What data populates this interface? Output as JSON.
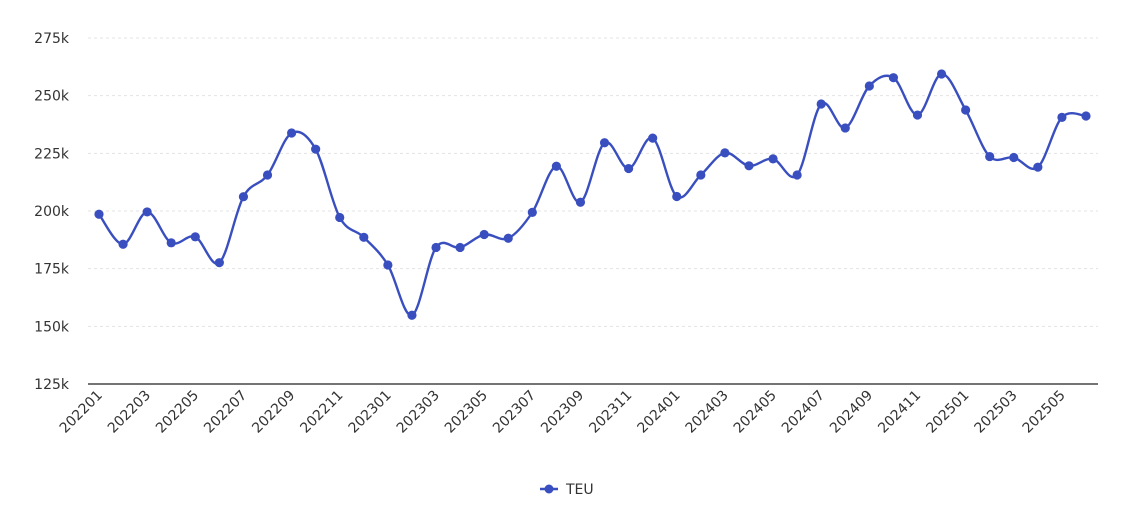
{
  "chart_data": {
    "type": "line",
    "title": "",
    "xlabel": "",
    "ylabel": "",
    "ylim": [
      125000,
      275000
    ],
    "y_ticks": [
      {
        "value": 125000,
        "label": "125k"
      },
      {
        "value": 150000,
        "label": "150k"
      },
      {
        "value": 175000,
        "label": "175k"
      },
      {
        "value": 200000,
        "label": "200k"
      },
      {
        "value": 225000,
        "label": "225k"
      },
      {
        "value": 250000,
        "label": "250k"
      },
      {
        "value": 275000,
        "label": "275k"
      }
    ],
    "categories": [
      "202201",
      "202202",
      "202203",
      "202204",
      "202205",
      "202206",
      "202207",
      "202208",
      "202209",
      "202210",
      "202211",
      "202212",
      "202301",
      "202302",
      "202303",
      "202304",
      "202305",
      "202306",
      "202307",
      "202308",
      "202309",
      "202310",
      "202311",
      "202312",
      "202401",
      "202402",
      "202403",
      "202404",
      "202405",
      "202406",
      "202407",
      "202408",
      "202409",
      "202410",
      "202411",
      "202412",
      "202501",
      "202502",
      "202503",
      "202504",
      "202505",
      "202506"
    ],
    "x_tick_labels": [
      "202201",
      "202203",
      "202205",
      "202207",
      "202209",
      "202211",
      "202301",
      "202303",
      "202305",
      "202307",
      "202309",
      "202311",
      "202401",
      "202403",
      "202405",
      "202407",
      "202409",
      "202411",
      "202501",
      "202503",
      "202505"
    ],
    "grid": true,
    "legend_position": "bottom-center",
    "series": [
      {
        "name": "TEU",
        "color": "#3a4fbf",
        "values": [
          198600,
          185600,
          199600,
          186200,
          188800,
          177600,
          206200,
          215600,
          233800,
          226800,
          197200,
          188600,
          176600,
          154800,
          184200,
          184200,
          189800,
          188200,
          199400,
          219400,
          203800,
          229600,
          218400,
          231600,
          206300,
          215600,
          225200,
          219600,
          222600,
          215600,
          246400,
          236000,
          254200,
          257800,
          241600,
          259400,
          243800,
          223600,
          223200,
          219000,
          240600,
          241200
        ]
      }
    ]
  }
}
